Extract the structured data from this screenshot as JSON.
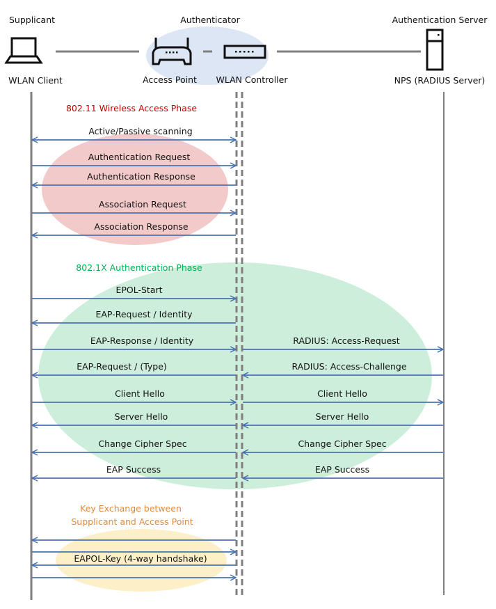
{
  "entities": {
    "supplicant": {
      "role": "Supplicant",
      "name": "WLAN Client",
      "icon": "laptop-icon"
    },
    "authenticator": {
      "role": "Authenticator",
      "access_point": "Access Point",
      "controller": "WLAN Controller",
      "ap_icon": "router-icon",
      "controller_icon": "switch-icon"
    },
    "server": {
      "role": "Authentication Server",
      "name": "NPS (RADIUS Server)",
      "icon": "server-icon"
    }
  },
  "phases": [
    {
      "title": "802.11 Wireless Access Phase",
      "color": "#c00000",
      "fill": "#f2caca"
    },
    {
      "title": "802.1X Authentication Phase",
      "color": "#00b050",
      "fill": "#cdeedb"
    },
    {
      "title_line1": "Key Exchange between",
      "title_line2": "Supplicant and Access Point",
      "color": "#e08b3c",
      "fill": "#fdf0c9"
    }
  ],
  "messages": [
    {
      "label": "Active/Passive scanning",
      "dir": "both"
    },
    {
      "label": "Authentication Request",
      "dir": "right"
    },
    {
      "label": "Authentication Response",
      "dir": "left"
    },
    {
      "label": "Association Request",
      "dir": "right"
    },
    {
      "label": "Association Response",
      "dir": "left"
    },
    {
      "label": "EPOL-Start",
      "dir": "right"
    },
    {
      "label": "EAP-Request / Identity",
      "dir": "left"
    },
    {
      "label": "EAP-Response / Identity",
      "dir": "right",
      "server_label": "RADIUS: Access-Request",
      "server_dir": "right"
    },
    {
      "label": "EAP-Request / (Type)",
      "dir": "left",
      "server_label": "RADIUS: Access-Challenge",
      "server_dir": "left"
    },
    {
      "label": "Client Hello",
      "dir": "right",
      "server_label": "Client Hello",
      "server_dir": "right"
    },
    {
      "label": "Server Hello",
      "dir": "left",
      "server_label": "Server Hello",
      "server_dir": "left"
    },
    {
      "label": "Change Cipher Spec",
      "dir": "left",
      "server_label": "Change Cipher Spec",
      "server_dir": "left"
    },
    {
      "label": "EAP Success",
      "dir": "left",
      "server_label": "EAP Success",
      "server_dir": "left"
    }
  ],
  "key_exchange": {
    "label": "EAPOL-Key (4-way handshake)",
    "dirs": [
      "left",
      "right",
      "left",
      "right"
    ]
  },
  "colors": {
    "arrow": "#4a72b0",
    "lifeline": "#7f7f7f",
    "authenticator_bg": "#dde6f4"
  }
}
